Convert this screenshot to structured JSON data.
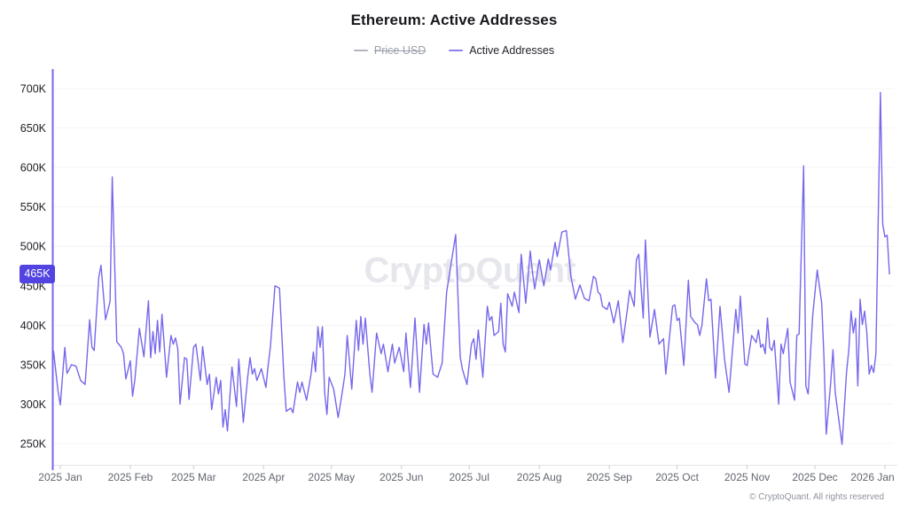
{
  "header": {
    "title": "Ethereum: Active Addresses",
    "legend": [
      {
        "label": "Price USD",
        "color": "#b2b5bf",
        "disabled": true
      },
      {
        "label": "Active Addresses",
        "color": "#8b80f2",
        "disabled": false
      }
    ]
  },
  "watermark": "CryptoQuant",
  "footer": {
    "copyright": "© CryptoQuant. All rights reserved"
  },
  "chart_data": {
    "type": "line",
    "title": "Ethereum: Active Addresses",
    "series_name": "Active Addresses",
    "unit": "addresses",
    "value_scale": "thousands",
    "line_color": "#7668ec",
    "grid": true,
    "legend_position": "top",
    "y_range": [
      250,
      700
    ],
    "y_ticks": [
      {
        "value": 250,
        "label": "250K"
      },
      {
        "value": 300,
        "label": "300K"
      },
      {
        "value": 350,
        "label": "350K"
      },
      {
        "value": 400,
        "label": "400K"
      },
      {
        "value": 450,
        "label": "450K"
      },
      {
        "value": 500,
        "label": "500K"
      },
      {
        "value": 550,
        "label": "550K"
      },
      {
        "value": 600,
        "label": "600K"
      },
      {
        "value": 650,
        "label": "650K"
      },
      {
        "value": 700,
        "label": "700K"
      }
    ],
    "current_value": {
      "value": 465,
      "label": "465K",
      "badge_color": "#5244e0"
    },
    "x_ticks": [
      {
        "date": "2025-01-01",
        "label": "2025 Jan"
      },
      {
        "date": "2025-02-01",
        "label": "2025 Feb"
      },
      {
        "date": "2025-03-01",
        "label": "2025 Mar"
      },
      {
        "date": "2025-04-01",
        "label": "2025 Apr"
      },
      {
        "date": "2025-05-01",
        "label": "2025 May"
      },
      {
        "date": "2025-06-01",
        "label": "2025 Jun"
      },
      {
        "date": "2025-07-01",
        "label": "2025 Jul"
      },
      {
        "date": "2025-08-01",
        "label": "2025 Aug"
      },
      {
        "date": "2025-09-01",
        "label": "2025 Sep"
      },
      {
        "date": "2025-10-01",
        "label": "2025 Oct"
      },
      {
        "date": "2025-11-01",
        "label": "2025 Nov"
      },
      {
        "date": "2025-12-01",
        "label": "2025 Dec"
      },
      {
        "date": "2026-01-01",
        "label": "2026 Jan"
      }
    ],
    "points": [
      [
        "2024-12-29",
        367
      ],
      [
        "2024-12-31",
        316
      ],
      [
        "2025-01-01",
        299
      ],
      [
        "2025-01-03",
        372
      ],
      [
        "2025-01-04",
        339
      ],
      [
        "2025-01-06",
        350
      ],
      [
        "2025-01-08",
        348
      ],
      [
        "2025-01-10",
        330
      ],
      [
        "2025-01-12",
        325
      ],
      [
        "2025-01-14",
        407
      ],
      [
        "2025-01-15",
        372
      ],
      [
        "2025-01-16",
        368
      ],
      [
        "2025-01-18",
        460
      ],
      [
        "2025-01-19",
        476
      ],
      [
        "2025-01-21",
        407
      ],
      [
        "2025-01-23",
        430
      ],
      [
        "2025-01-24",
        588
      ],
      [
        "2025-01-26",
        379
      ],
      [
        "2025-01-28",
        372
      ],
      [
        "2025-01-29",
        364
      ],
      [
        "2025-01-30",
        332
      ],
      [
        "2025-02-01",
        355
      ],
      [
        "2025-02-02",
        310
      ],
      [
        "2025-02-03",
        331
      ],
      [
        "2025-02-05",
        396
      ],
      [
        "2025-02-07",
        360
      ],
      [
        "2025-02-09",
        431
      ],
      [
        "2025-02-10",
        359
      ],
      [
        "2025-02-11",
        392
      ],
      [
        "2025-02-12",
        364
      ],
      [
        "2025-02-13",
        406
      ],
      [
        "2025-02-14",
        366
      ],
      [
        "2025-02-15",
        414
      ],
      [
        "2025-02-17",
        334
      ],
      [
        "2025-02-19",
        387
      ],
      [
        "2025-02-20",
        376
      ],
      [
        "2025-02-21",
        384
      ],
      [
        "2025-02-22",
        370
      ],
      [
        "2025-02-23",
        300
      ],
      [
        "2025-02-25",
        359
      ],
      [
        "2025-02-26",
        357
      ],
      [
        "2025-02-27",
        306
      ],
      [
        "2025-03-01",
        372
      ],
      [
        "2025-03-02",
        376
      ],
      [
        "2025-03-04",
        330
      ],
      [
        "2025-03-05",
        373
      ],
      [
        "2025-03-07",
        325
      ],
      [
        "2025-03-08",
        338
      ],
      [
        "2025-03-09",
        293
      ],
      [
        "2025-03-11",
        334
      ],
      [
        "2025-03-12",
        313
      ],
      [
        "2025-03-13",
        330
      ],
      [
        "2025-03-14",
        271
      ],
      [
        "2025-03-15",
        293
      ],
      [
        "2025-03-16",
        266
      ],
      [
        "2025-03-18",
        347
      ],
      [
        "2025-03-20",
        297
      ],
      [
        "2025-03-21",
        357
      ],
      [
        "2025-03-23",
        277
      ],
      [
        "2025-03-25",
        336
      ],
      [
        "2025-03-26",
        359
      ],
      [
        "2025-03-27",
        338
      ],
      [
        "2025-03-28",
        345
      ],
      [
        "2025-03-29",
        330
      ],
      [
        "2025-03-31",
        345
      ],
      [
        "2025-04-02",
        321
      ],
      [
        "2025-04-03",
        349
      ],
      [
        "2025-04-04",
        373
      ],
      [
        "2025-04-06",
        450
      ],
      [
        "2025-04-08",
        447
      ],
      [
        "2025-04-10",
        334
      ],
      [
        "2025-04-11",
        291
      ],
      [
        "2025-04-13",
        295
      ],
      [
        "2025-04-14",
        289
      ],
      [
        "2025-04-16",
        328
      ],
      [
        "2025-04-17",
        315
      ],
      [
        "2025-04-18",
        328
      ],
      [
        "2025-04-20",
        305
      ],
      [
        "2025-04-22",
        338
      ],
      [
        "2025-04-23",
        366
      ],
      [
        "2025-04-24",
        341
      ],
      [
        "2025-04-25",
        398
      ],
      [
        "2025-04-26",
        372
      ],
      [
        "2025-04-27",
        398
      ],
      [
        "2025-04-28",
        315
      ],
      [
        "2025-04-29",
        287
      ],
      [
        "2025-04-30",
        334
      ],
      [
        "2025-05-02",
        319
      ],
      [
        "2025-05-04",
        283
      ],
      [
        "2025-05-06",
        319
      ],
      [
        "2025-05-07",
        338
      ],
      [
        "2025-05-08",
        387
      ],
      [
        "2025-05-10",
        319
      ],
      [
        "2025-05-12",
        406
      ],
      [
        "2025-05-13",
        368
      ],
      [
        "2025-05-14",
        411
      ],
      [
        "2025-05-15",
        376
      ],
      [
        "2025-05-16",
        409
      ],
      [
        "2025-05-18",
        338
      ],
      [
        "2025-05-19",
        315
      ],
      [
        "2025-05-21",
        390
      ],
      [
        "2025-05-23",
        364
      ],
      [
        "2025-05-24",
        376
      ],
      [
        "2025-05-26",
        341
      ],
      [
        "2025-05-28",
        376
      ],
      [
        "2025-05-29",
        352
      ],
      [
        "2025-05-31",
        372
      ],
      [
        "2025-06-02",
        341
      ],
      [
        "2025-06-03",
        390
      ],
      [
        "2025-06-05",
        321
      ],
      [
        "2025-06-07",
        409
      ],
      [
        "2025-06-09",
        315
      ],
      [
        "2025-06-11",
        401
      ],
      [
        "2025-06-12",
        376
      ],
      [
        "2025-06-13",
        403
      ],
      [
        "2025-06-15",
        338
      ],
      [
        "2025-06-17",
        334
      ],
      [
        "2025-06-19",
        352
      ],
      [
        "2025-06-21",
        442
      ],
      [
        "2025-06-25",
        515
      ],
      [
        "2025-06-27",
        360
      ],
      [
        "2025-06-28",
        344
      ],
      [
        "2025-06-30",
        325
      ],
      [
        "2025-07-02",
        376
      ],
      [
        "2025-07-03",
        383
      ],
      [
        "2025-07-04",
        357
      ],
      [
        "2025-07-05",
        394
      ],
      [
        "2025-07-07",
        334
      ],
      [
        "2025-07-09",
        424
      ],
      [
        "2025-07-10",
        406
      ],
      [
        "2025-07-11",
        411
      ],
      [
        "2025-07-12",
        387
      ],
      [
        "2025-07-14",
        392
      ],
      [
        "2025-07-15",
        428
      ],
      [
        "2025-07-16",
        376
      ],
      [
        "2025-07-17",
        366
      ],
      [
        "2025-07-18",
        440
      ],
      [
        "2025-07-20",
        424
      ],
      [
        "2025-07-21",
        442
      ],
      [
        "2025-07-23",
        416
      ],
      [
        "2025-07-24",
        490
      ],
      [
        "2025-07-26",
        428
      ],
      [
        "2025-07-28",
        494
      ],
      [
        "2025-07-29",
        467
      ],
      [
        "2025-07-30",
        446
      ],
      [
        "2025-08-01",
        483
      ],
      [
        "2025-08-03",
        450
      ],
      [
        "2025-08-05",
        484
      ],
      [
        "2025-08-06",
        470
      ],
      [
        "2025-08-08",
        505
      ],
      [
        "2025-08-09",
        487
      ],
      [
        "2025-08-11",
        518
      ],
      [
        "2025-08-13",
        520
      ],
      [
        "2025-08-15",
        462
      ],
      [
        "2025-08-17",
        433
      ],
      [
        "2025-08-19",
        451
      ],
      [
        "2025-08-21",
        434
      ],
      [
        "2025-08-23",
        431
      ],
      [
        "2025-08-25",
        462
      ],
      [
        "2025-08-26",
        459
      ],
      [
        "2025-08-27",
        442
      ],
      [
        "2025-08-28",
        439
      ],
      [
        "2025-08-29",
        424
      ],
      [
        "2025-08-31",
        420
      ],
      [
        "2025-09-01",
        429
      ],
      [
        "2025-09-03",
        403
      ],
      [
        "2025-09-05",
        431
      ],
      [
        "2025-09-07",
        378
      ],
      [
        "2025-09-09",
        420
      ],
      [
        "2025-09-10",
        444
      ],
      [
        "2025-09-12",
        424
      ],
      [
        "2025-09-13",
        483
      ],
      [
        "2025-09-14",
        490
      ],
      [
        "2025-09-16",
        409
      ],
      [
        "2025-09-17",
        508
      ],
      [
        "2025-09-19",
        385
      ],
      [
        "2025-09-21",
        420
      ],
      [
        "2025-09-23",
        376
      ],
      [
        "2025-09-25",
        383
      ],
      [
        "2025-09-26",
        338
      ],
      [
        "2025-09-29",
        424
      ],
      [
        "2025-09-30",
        426
      ],
      [
        "2025-10-01",
        406
      ],
      [
        "2025-10-02",
        409
      ],
      [
        "2025-10-04",
        349
      ],
      [
        "2025-10-06",
        457
      ],
      [
        "2025-10-07",
        411
      ],
      [
        "2025-10-09",
        403
      ],
      [
        "2025-10-10",
        401
      ],
      [
        "2025-10-11",
        387
      ],
      [
        "2025-10-12",
        400
      ],
      [
        "2025-10-14",
        459
      ],
      [
        "2025-10-15",
        431
      ],
      [
        "2025-10-16",
        433
      ],
      [
        "2025-10-18",
        333
      ],
      [
        "2025-10-20",
        424
      ],
      [
        "2025-10-22",
        357
      ],
      [
        "2025-10-24",
        315
      ],
      [
        "2025-10-27",
        420
      ],
      [
        "2025-10-28",
        390
      ],
      [
        "2025-10-29",
        437
      ],
      [
        "2025-10-31",
        351
      ],
      [
        "2025-11-01",
        349
      ],
      [
        "2025-11-03",
        387
      ],
      [
        "2025-11-05",
        378
      ],
      [
        "2025-11-06",
        394
      ],
      [
        "2025-11-07",
        372
      ],
      [
        "2025-11-08",
        376
      ],
      [
        "2025-11-09",
        364
      ],
      [
        "2025-11-10",
        409
      ],
      [
        "2025-11-11",
        372
      ],
      [
        "2025-11-12",
        368
      ],
      [
        "2025-11-13",
        381
      ],
      [
        "2025-11-15",
        300
      ],
      [
        "2025-11-16",
        376
      ],
      [
        "2025-11-17",
        364
      ],
      [
        "2025-11-19",
        396
      ],
      [
        "2025-11-20",
        328
      ],
      [
        "2025-11-22",
        305
      ],
      [
        "2025-11-23",
        387
      ],
      [
        "2025-11-24",
        389
      ],
      [
        "2025-11-26",
        602
      ],
      [
        "2025-11-27",
        323
      ],
      [
        "2025-11-28",
        313
      ],
      [
        "2025-11-30",
        412
      ],
      [
        "2025-12-02",
        470
      ],
      [
        "2025-12-04",
        428
      ],
      [
        "2025-12-05",
        360
      ],
      [
        "2025-12-06",
        262
      ],
      [
        "2025-12-08",
        327
      ],
      [
        "2025-12-09",
        369
      ],
      [
        "2025-12-10",
        315
      ],
      [
        "2025-12-13",
        249
      ],
      [
        "2025-12-15",
        341
      ],
      [
        "2025-12-16",
        368
      ],
      [
        "2025-12-17",
        418
      ],
      [
        "2025-12-18",
        390
      ],
      [
        "2025-12-19",
        409
      ],
      [
        "2025-12-20",
        323
      ],
      [
        "2025-12-21",
        433
      ],
      [
        "2025-12-22",
        401
      ],
      [
        "2025-12-23",
        418
      ],
      [
        "2025-12-24",
        390
      ],
      [
        "2025-12-25",
        338
      ],
      [
        "2025-12-26",
        349
      ],
      [
        "2025-12-27",
        340
      ],
      [
        "2025-12-28",
        364
      ],
      [
        "2025-12-30",
        695
      ],
      [
        "2025-12-31",
        528
      ],
      [
        "2026-01-01",
        512
      ],
      [
        "2026-01-02",
        514
      ],
      [
        "2026-01-03",
        465
      ]
    ]
  }
}
